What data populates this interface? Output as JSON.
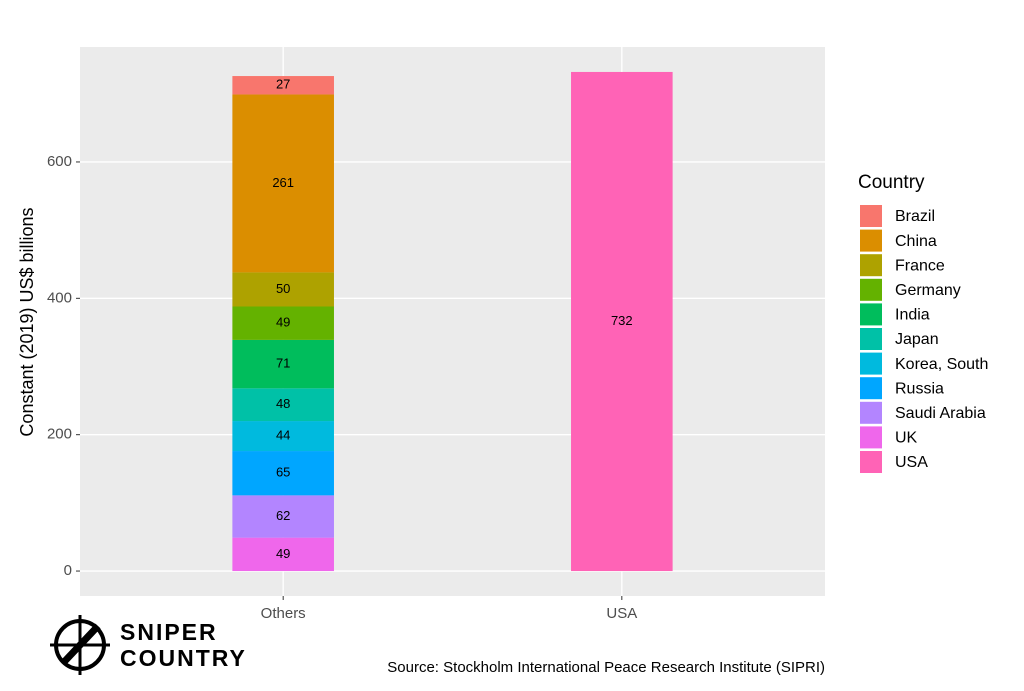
{
  "chart_data": {
    "type": "stacked_bar",
    "y_label": "Constant (2019) US$ billions",
    "categories": [
      "Others",
      "USA"
    ],
    "legend_title": "Country",
    "series": [
      {
        "name": "Brazil",
        "color": "#F8766D",
        "values": [
          27,
          null
        ]
      },
      {
        "name": "China",
        "color": "#DB8E00",
        "values": [
          261,
          null
        ]
      },
      {
        "name": "France",
        "color": "#AEA200",
        "values": [
          50,
          null
        ]
      },
      {
        "name": "Germany",
        "color": "#64B200",
        "values": [
          49,
          null
        ]
      },
      {
        "name": "India",
        "color": "#00BD5C",
        "values": [
          71,
          null
        ]
      },
      {
        "name": "Japan",
        "color": "#00C1A7",
        "values": [
          48,
          null
        ]
      },
      {
        "name": "Korea, South",
        "color": "#00BADE",
        "values": [
          44,
          null
        ]
      },
      {
        "name": "Russia",
        "color": "#00A6FF",
        "values": [
          65,
          null
        ]
      },
      {
        "name": "Saudi Arabia",
        "color": "#B385FF",
        "values": [
          62,
          null
        ]
      },
      {
        "name": "UK",
        "color": "#EF67EB",
        "values": [
          49,
          null
        ]
      },
      {
        "name": "USA",
        "color": "#FF63B6",
        "values": [
          null,
          732
        ]
      }
    ],
    "ylim": [
      -36.6,
      768.6
    ],
    "yticks": [
      0,
      200,
      400,
      600
    ],
    "grid": true,
    "legend_position": "right",
    "caption": "Source: Stockholm International Peace Research Institute (SIPRI)",
    "logo": [
      "SNIPER",
      "COUNTRY"
    ]
  }
}
